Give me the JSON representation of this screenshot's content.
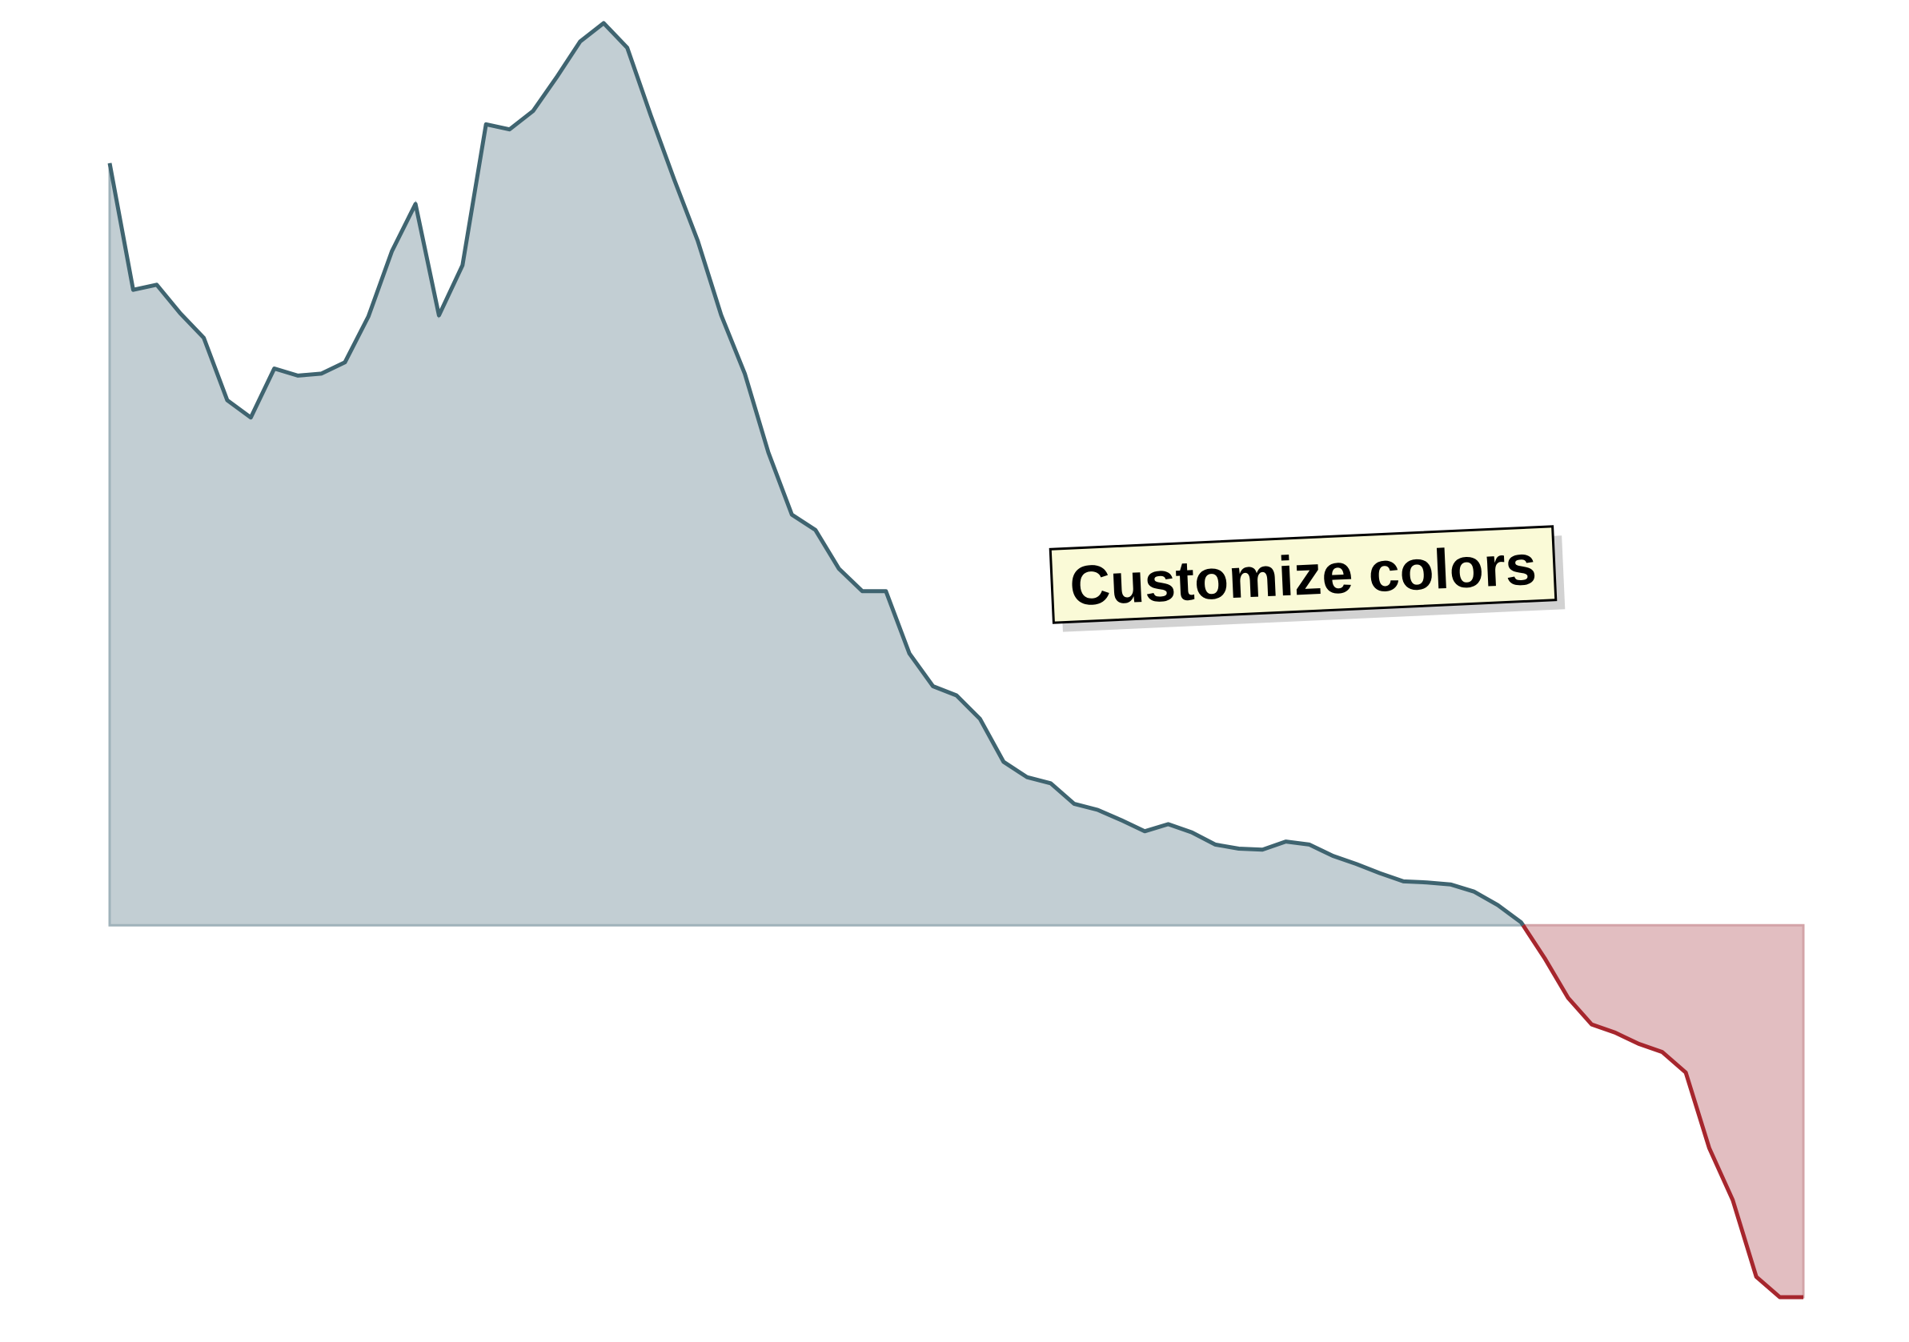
{
  "chart_data": {
    "type": "area",
    "title": "",
    "xlabel": "",
    "ylabel": "",
    "baseline": 0,
    "ylim": [
      -400,
      890
    ],
    "grid": false,
    "legend": "none",
    "colors": {
      "positive_line": "#3f6470",
      "positive_fill": "#c2ced3",
      "negative_line": "#a6262d",
      "negative_fill": "#e2bec1",
      "baseline": "#9fb2ba"
    },
    "x": [
      0,
      1,
      2,
      3,
      4,
      5,
      6,
      7,
      8,
      9,
      10,
      11,
      12,
      13,
      14,
      15,
      16,
      17,
      18,
      19,
      20,
      21,
      22,
      23,
      24,
      25,
      26,
      27,
      28,
      29,
      30,
      31,
      32,
      33,
      34,
      35,
      36,
      37,
      38,
      39,
      40,
      41,
      42,
      43,
      44,
      45,
      46,
      47,
      48,
      49,
      50,
      51,
      52,
      53,
      54,
      55,
      56,
      57,
      58,
      59,
      60,
      61,
      62,
      63,
      64,
      65,
      66,
      67,
      68,
      69,
      70,
      71,
      72
    ],
    "values": [
      746,
      622,
      627,
      599,
      575,
      514,
      497,
      545,
      538,
      540,
      551,
      596,
      660,
      706,
      597,
      646,
      784,
      779,
      797,
      830,
      865,
      883,
      859,
      793,
      730,
      670,
      597,
      540,
      463,
      402,
      387,
      349,
      327,
      327,
      266,
      234,
      225,
      202,
      160,
      145,
      139,
      119,
      113,
      103,
      92,
      99,
      91,
      79,
      75,
      74,
      82,
      79,
      68,
      60,
      51,
      43,
      42,
      40,
      33,
      20,
      3,
      -32,
      -71,
      -97,
      -105,
      -116,
      -124,
      -144,
      -218,
      -269,
      -344,
      -364,
      -364
    ],
    "annotation": {
      "text": "Customize colors",
      "rotation_deg": -2.6
    }
  }
}
